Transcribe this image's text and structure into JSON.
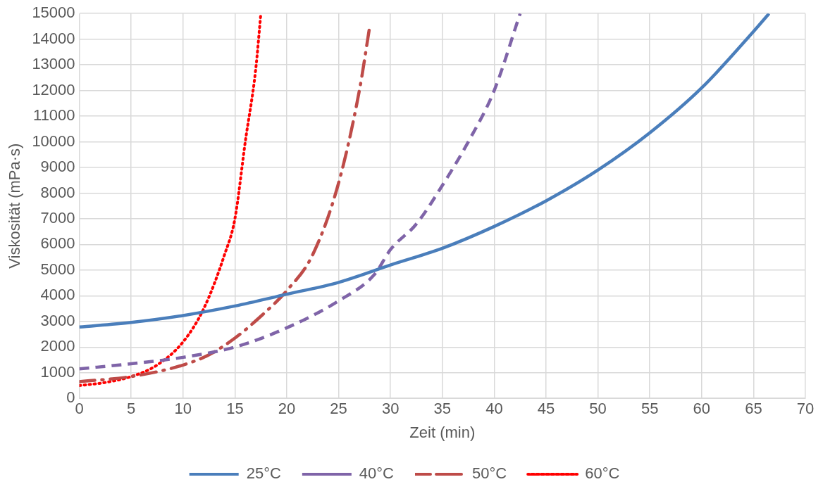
{
  "chart_data": {
    "type": "line",
    "xlabel": "Zeit (min)",
    "ylabel": "Viskosität (mPa·s)",
    "xlim": [
      0,
      70
    ],
    "xticks": [
      0,
      5,
      10,
      15,
      20,
      25,
      30,
      35,
      40,
      45,
      50,
      55,
      60,
      65,
      70
    ],
    "ylim": [
      0,
      15000
    ],
    "yticks": [
      0,
      1000,
      2000,
      3000,
      4000,
      5000,
      6000,
      7000,
      8000,
      9000,
      10000,
      11000,
      12000,
      13000,
      14000,
      15000
    ],
    "grid": true,
    "legend": "bottom",
    "marker": "none",
    "series": [
      {
        "name": "25°C",
        "color": "#4a7ebb",
        "line_style": "solid",
        "x": [
          0,
          5,
          10,
          15,
          20,
          25,
          30,
          35,
          40,
          45,
          50,
          55,
          60,
          65,
          66.5
        ],
        "values": [
          2780,
          2960,
          3230,
          3600,
          4060,
          4520,
          5200,
          5850,
          6700,
          7700,
          8900,
          10350,
          12100,
          14300,
          15000
        ]
      },
      {
        "name": "40°C",
        "color": "#7f64a8",
        "line_style": "dashed",
        "x": [
          0,
          5,
          10,
          15,
          20,
          25,
          28.5,
          30,
          32.5,
          35,
          37.5,
          40,
          42.5
        ],
        "values": [
          1150,
          1350,
          1600,
          2000,
          2750,
          3800,
          4850,
          5800,
          6800,
          8300,
          10000,
          12000,
          15000
        ]
      },
      {
        "name": "50°C",
        "color": "#be4b48",
        "line_style": "dashdot",
        "x": [
          0,
          5,
          10,
          12.5,
          15,
          17.5,
          20,
          22.5,
          25,
          27,
          28
        ],
        "values": [
          650,
          850,
          1300,
          1700,
          2350,
          3200,
          4200,
          5600,
          8400,
          12000,
          14500
        ]
      },
      {
        "name": "60°C",
        "color": "#ff0000",
        "line_style": "dotted",
        "x": [
          0,
          2.5,
          5,
          7.5,
          10,
          12,
          14,
          15,
          16,
          17,
          17.5
        ],
        "values": [
          500,
          620,
          850,
          1300,
          2200,
          3500,
          5600,
          7000,
          10000,
          12800,
          15000
        ]
      }
    ]
  }
}
